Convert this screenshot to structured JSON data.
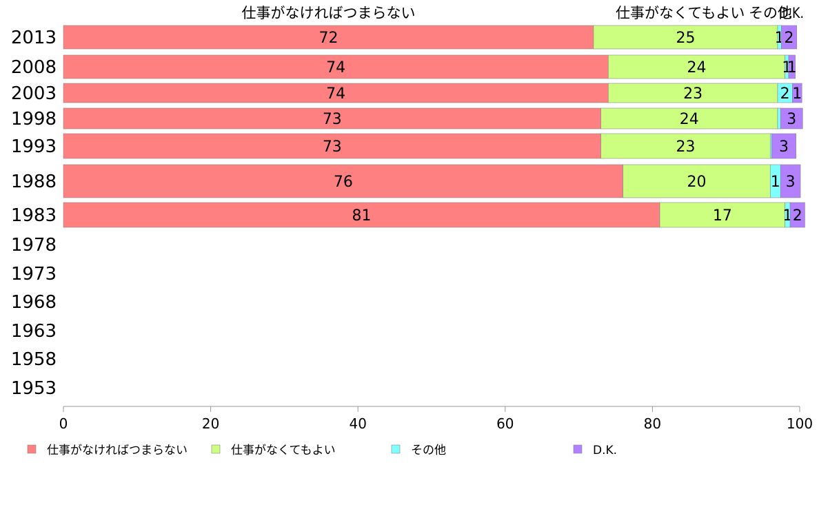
{
  "chart_data": {
    "type": "bar",
    "orientation": "horizontal",
    "stacked": true,
    "categories": [
      "2013",
      "2008",
      "2003",
      "1998",
      "1993",
      "1988",
      "1983",
      "1978",
      "1973",
      "1968",
      "1963",
      "1958",
      "1953"
    ],
    "series": [
      {
        "name": "仕事がなければつまらない",
        "color": "#ff8080",
        "values": [
          72,
          74,
          74,
          73,
          73,
          76,
          81,
          null,
          null,
          null,
          null,
          null,
          null
        ]
      },
      {
        "name": "仕事がなくてもよい",
        "color": "#ccff80",
        "values": [
          25,
          24,
          23,
          24,
          23,
          20,
          17,
          null,
          null,
          null,
          null,
          null,
          null
        ]
      },
      {
        "name": "その他",
        "color": "#80ffff",
        "values": [
          0.5,
          0.5,
          2,
          0.4,
          0.2,
          1.4,
          0.7,
          null,
          null,
          null,
          null,
          null,
          null
        ]
      },
      {
        "name": "D.K.",
        "color": "#b380ff",
        "values": [
          2.1,
          0.9,
          1.3,
          3,
          3.3,
          2.7,
          2,
          null,
          null,
          null,
          null,
          null,
          null
        ]
      }
    ],
    "data_labels": [
      [
        "72",
        "25",
        "1",
        "2"
      ],
      [
        "74",
        "24",
        "1",
        "1"
      ],
      [
        "74",
        "23",
        "2",
        "1"
      ],
      [
        "73",
        "24",
        "",
        "3"
      ],
      [
        "73",
        "23",
        "",
        "3"
      ],
      [
        "76",
        "20",
        "1",
        "3"
      ],
      [
        "81",
        "17",
        "1",
        "2"
      ]
    ],
    "top_labels": [
      "仕事がなければつまらない",
      "仕事がなくてもよい",
      "その他",
      "D.K."
    ],
    "x_ticks": [
      "0",
      "20",
      "40",
      "60",
      "80",
      "100"
    ],
    "xlim": [
      0,
      100
    ],
    "grid": false,
    "legend_position": "bottom"
  }
}
